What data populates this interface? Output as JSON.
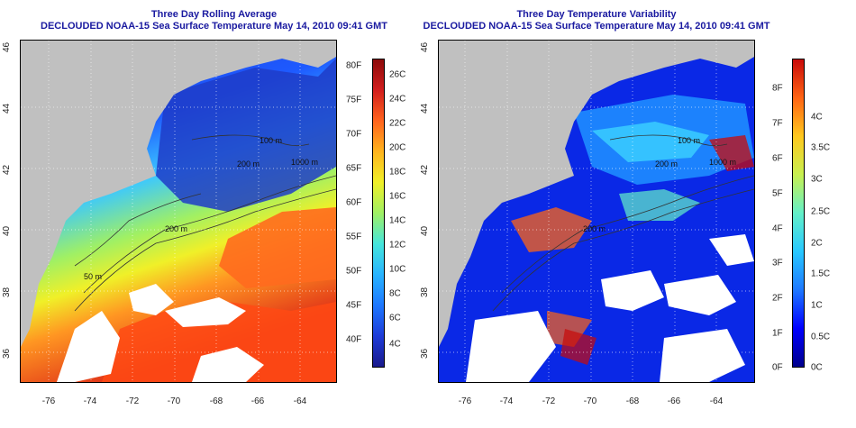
{
  "left_panel": {
    "title_line1": "Three Day Rolling Average",
    "title_line2": "DECLOUDED NOAA-15 Sea Surface Temperature May 14, 2010 09:41 GMT",
    "colorbar_f": [
      "80F",
      "75F",
      "70F",
      "65F",
      "60F",
      "55F",
      "50F",
      "45F",
      "40F"
    ],
    "colorbar_c": [
      "26C",
      "24C",
      "22C",
      "20C",
      "18C",
      "16C",
      "14C",
      "12C",
      "10C",
      "8C",
      "6C",
      "4C"
    ],
    "contour_labels": [
      "100 m",
      "200 m",
      "1000 m",
      "50 m",
      "200 m"
    ]
  },
  "right_panel": {
    "title_line1": "Three Day Temperature Variability",
    "title_line2": "DECLOUDED NOAA-15 Sea Surface Temperature May 14, 2010 09:41 GMT",
    "colorbar_f": [
      "8F",
      "7F",
      "6F",
      "5F",
      "4F",
      "3F",
      "2F",
      "1F",
      "0F"
    ],
    "colorbar_c": [
      "4C",
      "3.5C",
      "3C",
      "2.5C",
      "2C",
      "1.5C",
      "1C",
      "0.5C",
      "0C"
    ],
    "contour_labels": [
      "100 m",
      "200 m",
      "1000 m",
      "200 m"
    ]
  },
  "axes": {
    "lat_ticks": [
      "46",
      "44",
      "42",
      "40",
      "38",
      "36"
    ],
    "lon_ticks": [
      "-76",
      "-74",
      "-72",
      "-70",
      "-68",
      "-66",
      "-64"
    ]
  },
  "colors": {
    "land": "#c0c0c0",
    "title": "#1a1aa0",
    "sst_scale": [
      "#1a1a8c",
      "#1e3cd8",
      "#1e78ff",
      "#28b4ff",
      "#46e6dc",
      "#a0f064",
      "#f0f028",
      "#ffb41e",
      "#ff641e",
      "#d21e1e",
      "#8c0a0a"
    ],
    "var_scale": [
      "#00008c",
      "#0000ff",
      "#1e78ff",
      "#28c8ff",
      "#64f0c8",
      "#c8f050",
      "#ffc81e",
      "#ff6414",
      "#c80a0a"
    ]
  }
}
